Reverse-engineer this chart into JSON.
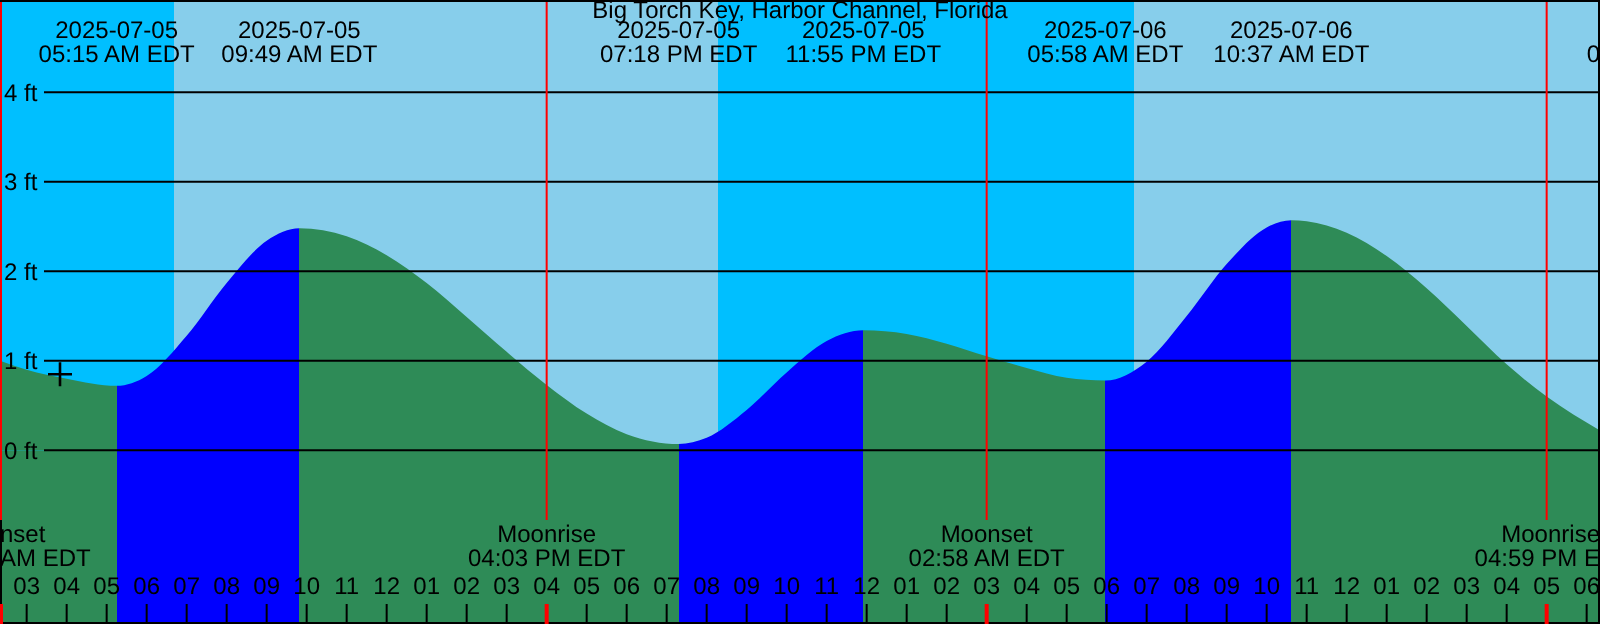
{
  "chart_data": {
    "type": "area",
    "title": "Big Torch Key, Harbor Channel, Florida",
    "x": [
      "2025-07-05T02:20",
      "2025-07-05T03:00",
      "2025-07-05T04:00",
      "2025-07-05T05:15",
      "2025-07-05T06:00",
      "2025-07-05T07:00",
      "2025-07-05T08:00",
      "2025-07-05T09:00",
      "2025-07-05T09:49",
      "2025-07-05T11:00",
      "2025-07-05T12:00",
      "2025-07-05T13:00",
      "2025-07-05T14:00",
      "2025-07-05T15:00",
      "2025-07-05T16:00",
      "2025-07-05T17:00",
      "2025-07-05T18:00",
      "2025-07-05T19:18",
      "2025-07-05T20:00",
      "2025-07-05T21:00",
      "2025-07-05T22:00",
      "2025-07-05T23:00",
      "2025-07-05T23:55",
      "2025-07-06T01:00",
      "2025-07-06T02:00",
      "2025-07-06T03:00",
      "2025-07-06T04:00",
      "2025-07-06T05:00",
      "2025-07-06T05:58",
      "2025-07-06T07:00",
      "2025-07-06T08:00",
      "2025-07-06T09:00",
      "2025-07-06T10:00",
      "2025-07-06T10:37",
      "2025-07-06T11:00",
      "2025-07-06T12:00",
      "2025-07-06T13:00",
      "2025-07-06T14:00",
      "2025-07-06T15:00",
      "2025-07-06T16:00",
      "2025-07-06T17:00",
      "2025-07-06T18:20"
    ],
    "series": [
      {
        "values": [
          1.0,
          0.9,
          0.8,
          0.72,
          0.83,
          1.28,
          1.87,
          2.34,
          2.48,
          2.39,
          2.18,
          1.87,
          1.49,
          1.1,
          0.73,
          0.41,
          0.18,
          0.07,
          0.14,
          0.45,
          0.87,
          1.22,
          1.34,
          1.3,
          1.19,
          1.05,
          0.92,
          0.81,
          0.78,
          0.99,
          1.5,
          2.08,
          2.49,
          2.57,
          2.56,
          2.43,
          2.17,
          1.81,
          1.39,
          0.96,
          0.6,
          0.22
        ],
        "colors": [
          "#2e8b57",
          "#2e8b57",
          "#2e8b57",
          "#0000ff",
          "#0000ff",
          "#0000ff",
          "#0000ff",
          "#0000ff",
          "#2e8b57",
          "#2e8b57",
          "#2e8b57",
          "#2e8b57",
          "#2e8b57",
          "#2e8b57",
          "#2e8b57",
          "#2e8b57",
          "#2e8b57",
          "#0000ff",
          "#0000ff",
          "#0000ff",
          "#0000ff",
          "#0000ff",
          "#2e8b57",
          "#2e8b57",
          "#2e8b57",
          "#2e8b57",
          "#2e8b57",
          "#2e8b57",
          "#0000ff",
          "#0000ff",
          "#0000ff",
          "#0000ff",
          "#0000ff",
          "#2e8b57",
          "#2e8b57",
          "#2e8b57",
          "#2e8b57",
          "#2e8b57",
          "#2e8b57",
          "#2e8b57",
          "#2e8b57",
          "#2e8b57"
        ]
      },
      {
        "type": "scatter",
        "marker": "cross",
        "color": "#000000",
        "x": [
          "2025-07-05T03:50"
        ],
        "values": [
          0.85
        ]
      }
    ],
    "xlim": [
      "2025-07-05T02:20",
      "2025-07-06T18:20"
    ],
    "xticks": [
      {
        "value": "2025-07-05T03:00",
        "label": "03"
      },
      {
        "value": "2025-07-05T04:00",
        "label": "04"
      },
      {
        "value": "2025-07-05T05:00",
        "label": "05"
      },
      {
        "value": "2025-07-05T06:00",
        "label": "06"
      },
      {
        "value": "2025-07-05T07:00",
        "label": "07"
      },
      {
        "value": "2025-07-05T08:00",
        "label": "08"
      },
      {
        "value": "2025-07-05T09:00",
        "label": "09"
      },
      {
        "value": "2025-07-05T10:00",
        "label": "10"
      },
      {
        "value": "2025-07-05T11:00",
        "label": "11"
      },
      {
        "value": "2025-07-05T12:00",
        "label": "12"
      },
      {
        "value": "2025-07-05T13:00",
        "label": "01"
      },
      {
        "value": "2025-07-05T14:00",
        "label": "02"
      },
      {
        "value": "2025-07-05T15:00",
        "label": "03"
      },
      {
        "value": "2025-07-05T16:00",
        "label": "04"
      },
      {
        "value": "2025-07-05T17:00",
        "label": "05"
      },
      {
        "value": "2025-07-05T18:00",
        "label": "06"
      },
      {
        "value": "2025-07-05T19:00",
        "label": "07"
      },
      {
        "value": "2025-07-05T20:00",
        "label": "08"
      },
      {
        "value": "2025-07-05T21:00",
        "label": "09"
      },
      {
        "value": "2025-07-05T22:00",
        "label": "10"
      },
      {
        "value": "2025-07-05T23:00",
        "label": "11"
      },
      {
        "value": "2025-07-06T00:00",
        "label": "12"
      },
      {
        "value": "2025-07-06T01:00",
        "label": "01"
      },
      {
        "value": "2025-07-06T02:00",
        "label": "02"
      },
      {
        "value": "2025-07-06T03:00",
        "label": "03"
      },
      {
        "value": "2025-07-06T04:00",
        "label": "04"
      },
      {
        "value": "2025-07-06T05:00",
        "label": "05"
      },
      {
        "value": "2025-07-06T06:00",
        "label": "06"
      },
      {
        "value": "2025-07-06T07:00",
        "label": "07"
      },
      {
        "value": "2025-07-06T08:00",
        "label": "08"
      },
      {
        "value": "2025-07-06T09:00",
        "label": "09"
      },
      {
        "value": "2025-07-06T10:00",
        "label": "10"
      },
      {
        "value": "2025-07-06T11:00",
        "label": "11"
      },
      {
        "value": "2025-07-06T12:00",
        "label": "12"
      },
      {
        "value": "2025-07-06T13:00",
        "label": "01"
      },
      {
        "value": "2025-07-06T14:00",
        "label": "02"
      },
      {
        "value": "2025-07-06T15:00",
        "label": "03"
      },
      {
        "value": "2025-07-06T16:00",
        "label": "04"
      },
      {
        "value": "2025-07-06T17:00",
        "label": "05"
      },
      {
        "value": "2025-07-06T18:00",
        "label": "06"
      }
    ],
    "x2lim": [
      "2025-07-05T02:20",
      "2025-07-06T18:20"
    ],
    "x2ticks": [
      {
        "value": "2025-07-05T05:15",
        "label": "2025-07-05\n05:15 AM EDT"
      },
      {
        "value": "2025-07-05T09:49",
        "label": "2025-07-05\n09:49 AM EDT"
      },
      {
        "value": "2025-07-05T19:18",
        "label": "2025-07-05\n07:18 PM EDT"
      },
      {
        "value": "2025-07-05T23:55",
        "label": "2025-07-05\n11:55 PM EDT"
      },
      {
        "value": "2025-07-06T05:58",
        "label": "2025-07-06\n05:58 AM EDT"
      },
      {
        "value": "2025-07-06T10:37",
        "label": "2025-07-06\n10:37 AM EDT"
      },
      {
        "value": "2025-07-06T18:20",
        "label": "0"
      }
    ],
    "ylim": [
      -1.94,
      5.03
    ],
    "yticks": [
      {
        "value": 0,
        "label": "0 ft"
      },
      {
        "value": 1,
        "label": "1 ft"
      },
      {
        "value": 2,
        "label": "2 ft"
      },
      {
        "value": 3,
        "label": "3 ft"
      },
      {
        "value": 4,
        "label": "4 ft"
      }
    ],
    "grid": "y",
    "bands": [
      {
        "axis": "y",
        "from": -1.94,
        "to": 0
      },
      {
        "axis": "x",
        "from": "2025-07-05T02:20",
        "to": "2025-07-05T06:41",
        "color": "#00bfff"
      },
      {
        "axis": "x",
        "from": "2025-07-05T06:41",
        "to": "2025-07-05T20:17",
        "color": "#87ceeb"
      },
      {
        "axis": "x",
        "from": "2025-07-05T20:17",
        "to": "2025-07-06T06:41",
        "color": "#00bfff"
      },
      {
        "axis": "x",
        "from": "2025-07-06T06:41",
        "to": "2025-07-06T18:20",
        "color": "#87ceeb"
      }
    ],
    "ref_lines": [
      {
        "axis": "x",
        "value": "2025-07-05T02:20",
        "label": "nset\nAM EDT",
        "color": "#ff0000"
      },
      {
        "axis": "x",
        "value": "2025-07-05T16:00",
        "label": "Moonrise\n04:03 PM EDT",
        "color": "#ff0000"
      },
      {
        "axis": "x",
        "value": "2025-07-06T03:00",
        "label": "Moonset\n02:58 AM EDT",
        "color": "#ff0000"
      },
      {
        "axis": "x",
        "value": "2025-07-06T17:00",
        "label": "Moonrise\n04:59 PM E",
        "color": "#ff0000"
      }
    ]
  }
}
